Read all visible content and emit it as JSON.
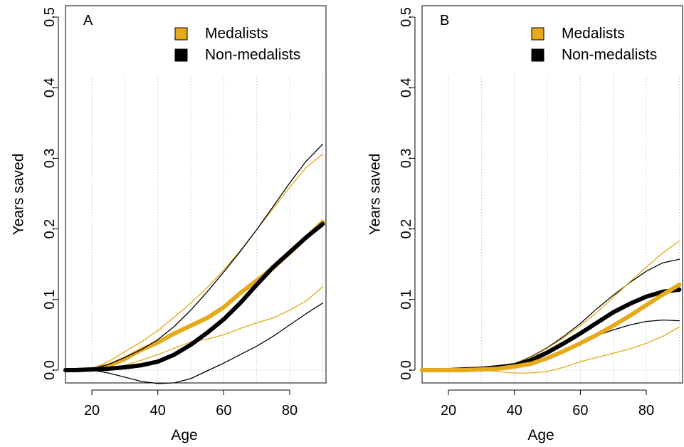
{
  "chart_data": [
    {
      "type": "line",
      "panel_label": "A",
      "xlabel": "Age",
      "ylabel": "Years saved",
      "xlim": [
        12,
        91
      ],
      "ylim": [
        0,
        0.5
      ],
      "xticks": [
        20,
        40,
        60,
        80
      ],
      "yticks": [
        0.0,
        0.1,
        0.2,
        0.3,
        0.4,
        0.5
      ],
      "ytick_labels": [
        "0.0",
        "0.1",
        "0.2",
        "0.3",
        "0.4",
        "0.5"
      ],
      "grid": "vertical dotted",
      "legend_position": "top-right",
      "legend": [
        "Medalists",
        "Non-medalists"
      ],
      "x": [
        12,
        15,
        20,
        25,
        30,
        35,
        40,
        45,
        50,
        55,
        60,
        65,
        70,
        75,
        80,
        85,
        90
      ],
      "series": [
        {
          "name": "Medalists",
          "color": "#e6a91a",
          "role": "estimate",
          "values": [
            0,
            0,
            0.001,
            0.006,
            0.016,
            0.029,
            0.039,
            0.052,
            0.063,
            0.074,
            0.089,
            0.109,
            0.127,
            0.145,
            0.166,
            0.188,
            0.21
          ]
        },
        {
          "name": "Medalists",
          "color": "#e6a91a",
          "role": "upper",
          "values": [
            0,
            0,
            0.002,
            0.012,
            0.026,
            0.04,
            0.056,
            0.075,
            0.095,
            0.117,
            0.142,
            0.169,
            0.199,
            0.229,
            0.259,
            0.287,
            0.306
          ]
        },
        {
          "name": "Medalists",
          "color": "#e6a91a",
          "role": "lower",
          "values": [
            0,
            0,
            0.0,
            0.002,
            0.007,
            0.014,
            0.022,
            0.031,
            0.04,
            0.044,
            0.05,
            0.059,
            0.067,
            0.074,
            0.085,
            0.098,
            0.118
          ]
        },
        {
          "name": "Non-medalists",
          "color": "#000000",
          "role": "estimate",
          "values": [
            0,
            0,
            0.001,
            0.002,
            0.004,
            0.007,
            0.012,
            0.022,
            0.036,
            0.053,
            0.072,
            0.095,
            0.121,
            0.146,
            0.167,
            0.188,
            0.207
          ]
        },
        {
          "name": "Non-medalists",
          "color": "#000000",
          "role": "upper",
          "values": [
            0,
            0,
            0.002,
            0.008,
            0.018,
            0.029,
            0.043,
            0.062,
            0.085,
            0.111,
            0.139,
            0.168,
            0.199,
            0.232,
            0.265,
            0.296,
            0.32
          ]
        },
        {
          "name": "Non-medalists",
          "color": "#000000",
          "role": "lower",
          "values": [
            0,
            0,
            0.0,
            -0.004,
            -0.01,
            -0.016,
            -0.019,
            -0.018,
            -0.012,
            -0.001,
            0.01,
            0.022,
            0.034,
            0.048,
            0.064,
            0.08,
            0.095
          ]
        }
      ]
    },
    {
      "type": "line",
      "panel_label": "B",
      "xlabel": "Age",
      "ylabel": "Years saved",
      "xlim": [
        12,
        91
      ],
      "ylim": [
        0,
        0.5
      ],
      "xticks": [
        20,
        40,
        60,
        80
      ],
      "yticks": [
        0.0,
        0.1,
        0.2,
        0.3,
        0.4,
        0.5
      ],
      "ytick_labels": [
        "0.0",
        "0.1",
        "0.2",
        "0.3",
        "0.4",
        "0.5"
      ],
      "grid": "vertical dotted",
      "legend_position": "top-right",
      "legend": [
        "Medalists",
        "Non-medalists"
      ],
      "x": [
        12,
        15,
        20,
        25,
        30,
        35,
        40,
        45,
        50,
        55,
        60,
        65,
        70,
        75,
        80,
        85,
        90
      ],
      "series": [
        {
          "name": "Non-medalists",
          "color": "#000000",
          "role": "upper",
          "values": [
            0,
            0,
            0.0,
            0.001,
            0.002,
            0.004,
            0.009,
            0.019,
            0.032,
            0.048,
            0.066,
            0.087,
            0.106,
            0.124,
            0.14,
            0.152,
            0.157
          ]
        },
        {
          "name": "Non-medalists",
          "color": "#000000",
          "role": "lower",
          "values": [
            0,
            0,
            0.0,
            0.001,
            0.002,
            0.003,
            0.005,
            0.01,
            0.018,
            0.028,
            0.038,
            0.049,
            0.057,
            0.064,
            0.069,
            0.071,
            0.07
          ]
        },
        {
          "name": "Medalists",
          "color": "#e6a91a",
          "role": "upper",
          "values": [
            0,
            0,
            0.0,
            0.001,
            0.002,
            0.004,
            0.009,
            0.018,
            0.031,
            0.046,
            0.063,
            0.082,
            0.103,
            0.125,
            0.146,
            0.166,
            0.183
          ]
        },
        {
          "name": "Medalists",
          "color": "#e6a91a",
          "role": "lower",
          "values": [
            0,
            0,
            0.0,
            0.0,
            0.0,
            -0.002,
            -0.004,
            -0.004,
            -0.002,
            0.004,
            0.012,
            0.018,
            0.024,
            0.03,
            0.038,
            0.048,
            0.061
          ]
        },
        {
          "name": "Non-medalists",
          "color": "#000000",
          "role": "estimate",
          "values": [
            0,
            0,
            0.0,
            0.001,
            0.002,
            0.004,
            0.007,
            0.014,
            0.025,
            0.038,
            0.052,
            0.067,
            0.082,
            0.094,
            0.104,
            0.111,
            0.114
          ]
        },
        {
          "name": "Medalists",
          "color": "#e6a91a",
          "role": "estimate",
          "values": [
            0,
            0,
            0.0,
            0.0,
            0.001,
            0.002,
            0.005,
            0.009,
            0.017,
            0.027,
            0.038,
            0.05,
            0.063,
            0.077,
            0.092,
            0.107,
            0.121
          ]
        }
      ]
    }
  ]
}
